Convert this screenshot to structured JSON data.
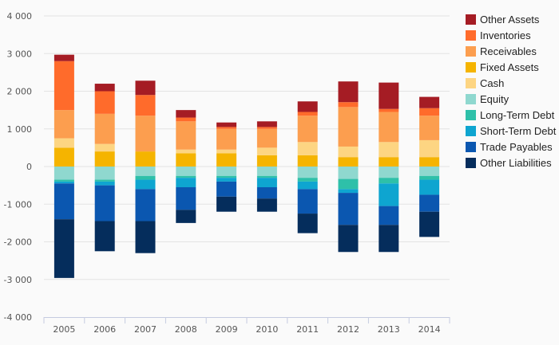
{
  "chart_data": {
    "type": "bar",
    "stacked": true,
    "title": "",
    "xlabel": "",
    "ylabel": "",
    "categories": [
      "2005",
      "2006",
      "2007",
      "2008",
      "2009",
      "2010",
      "2011",
      "2012",
      "2013",
      "2014"
    ],
    "ylim": [
      -4000,
      4000
    ],
    "yticks": [
      4000,
      3000,
      2000,
      1000,
      0,
      -1000,
      -2000,
      -3000,
      -4000
    ],
    "ytick_labels": [
      "4 000",
      "3 000",
      "2 000",
      "1 000",
      "0",
      "-1 000",
      "-2 000",
      "-3 000",
      "-4 000"
    ],
    "grid": true,
    "legend_position": "right",
    "positive_series": [
      {
        "name": "Fixed Assets",
        "color": "#f5b400",
        "values": [
          500,
          400,
          400,
          350,
          350,
          300,
          300,
          250,
          250,
          250
        ]
      },
      {
        "name": "Cash",
        "color": "#fdd582",
        "values": [
          250,
          200,
          0,
          100,
          100,
          200,
          350,
          280,
          400,
          450
        ]
      },
      {
        "name": "Receivables",
        "color": "#fc9e4f",
        "values": [
          750,
          800,
          950,
          750,
          550,
          500,
          700,
          1050,
          800,
          650
        ]
      },
      {
        "name": "Inventories",
        "color": "#ff6b2b",
        "values": [
          1300,
          600,
          550,
          100,
          50,
          50,
          100,
          130,
          80,
          200
        ]
      },
      {
        "name": "Other Assets",
        "color": "#a51c24",
        "values": [
          170,
          200,
          380,
          200,
          120,
          150,
          280,
          550,
          700,
          300
        ]
      }
    ],
    "negative_series": [
      {
        "name": "Equity",
        "color": "#8fd8cf",
        "values": [
          -350,
          -350,
          -250,
          -250,
          -250,
          -250,
          -300,
          -330,
          -300,
          -250
        ]
      },
      {
        "name": "Long-Term Debt",
        "color": "#2ec0a9",
        "values": [
          -50,
          -50,
          -100,
          -50,
          -50,
          -50,
          -100,
          -270,
          -150,
          -100
        ]
      },
      {
        "name": "Short-Term Debt",
        "color": "#0ea5d0",
        "values": [
          -50,
          -100,
          -250,
          -250,
          -100,
          -250,
          -200,
          -100,
          -600,
          -400
        ]
      },
      {
        "name": "Trade Payables",
        "color": "#0b57b0",
        "values": [
          -950,
          -950,
          -850,
          -600,
          -400,
          -300,
          -650,
          -850,
          -500,
          -450
        ]
      },
      {
        "name": "Other Liabilities",
        "color": "#052d5c",
        "values": [
          -1560,
          -800,
          -850,
          -350,
          -400,
          -350,
          -520,
          -720,
          -720,
          -670
        ]
      }
    ],
    "legend": [
      {
        "name": "Other Assets",
        "color": "#a51c24"
      },
      {
        "name": "Inventories",
        "color": "#ff6b2b"
      },
      {
        "name": "Receivables",
        "color": "#fc9e4f"
      },
      {
        "name": "Fixed Assets",
        "color": "#f5b400"
      },
      {
        "name": "Cash",
        "color": "#fdd582"
      },
      {
        "name": "Equity",
        "color": "#8fd8cf"
      },
      {
        "name": "Long-Term Debt",
        "color": "#2ec0a9"
      },
      {
        "name": "Short-Term Debt",
        "color": "#0ea5d0"
      },
      {
        "name": "Trade Payables",
        "color": "#0b57b0"
      },
      {
        "name": "Other Liabilities",
        "color": "#052d5c"
      }
    ]
  }
}
